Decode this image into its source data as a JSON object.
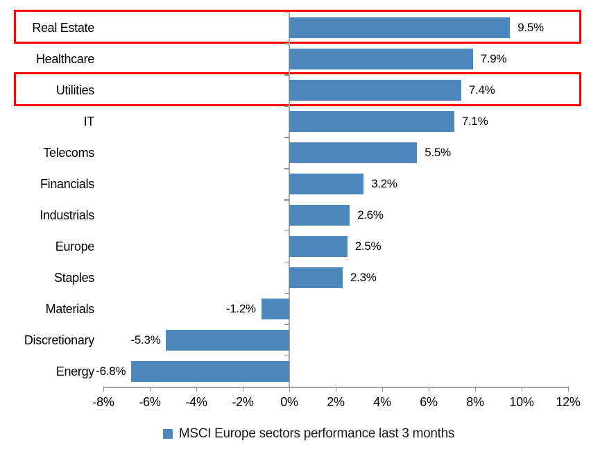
{
  "chart_data": {
    "type": "bar",
    "orientation": "horizontal",
    "title": "",
    "categories": [
      "Real Estate",
      "Healthcare",
      "Utilities",
      "IT",
      "Telecoms",
      "Financials",
      "Industrials",
      "Europe",
      "Staples",
      "Materials",
      "Discretionary",
      "Energy"
    ],
    "values": [
      9.5,
      7.9,
      7.4,
      7.1,
      5.5,
      3.2,
      2.6,
      2.5,
      2.3,
      -1.2,
      -5.3,
      -6.8
    ],
    "data_labels": [
      "9.5%",
      "7.9%",
      "7.4%",
      "7.1%",
      "5.5%",
      "3.2%",
      "2.6%",
      "2.5%",
      "2.3%",
      "-1.2%",
      "-5.3%",
      "-6.8%"
    ],
    "x_ticks": [
      -8,
      -6,
      -4,
      -2,
      0,
      2,
      4,
      6,
      8,
      10,
      12
    ],
    "x_tick_labels": [
      "-8%",
      "-6%",
      "-4%",
      "-2%",
      "0%",
      "2%",
      "4%",
      "6%",
      "8%",
      "10%",
      "12%"
    ],
    "xlim": [
      -8,
      12
    ],
    "xlabel": "",
    "ylabel": "",
    "grid": false,
    "legend": "MSCI Europe sectors performance last 3 months",
    "legend_position": "bottom",
    "bar_color": "#4e86be",
    "axis_color": "#a6a6a6",
    "text_color": "#000000",
    "highlight_box_color": "#ff0000",
    "highlighted_categories": [
      "Real Estate",
      "Utilities"
    ]
  }
}
